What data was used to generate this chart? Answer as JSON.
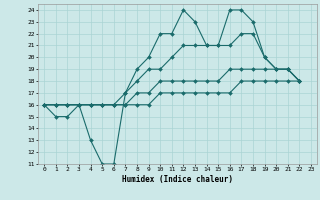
{
  "xlabel": "Humidex (Indice chaleur)",
  "xlim": [
    -0.5,
    23.5
  ],
  "ylim": [
    11,
    24.5
  ],
  "background_color": "#cce8e8",
  "grid_color": "#aad4d4",
  "line_color": "#1a6b6b",
  "series": [
    [
      16,
      15,
      15,
      16,
      13,
      11,
      11,
      17,
      19,
      20,
      22,
      22,
      24,
      23,
      21,
      21,
      24,
      24,
      23,
      20,
      19,
      19,
      18
    ],
    [
      16,
      16,
      16,
      16,
      16,
      16,
      16,
      17,
      18,
      19,
      19,
      20,
      21,
      21,
      21,
      21,
      21,
      22,
      22,
      20,
      19,
      19,
      18
    ],
    [
      16,
      16,
      16,
      16,
      16,
      16,
      16,
      16,
      17,
      17,
      18,
      18,
      18,
      18,
      18,
      18,
      19,
      19,
      19,
      19,
      19,
      19,
      18
    ],
    [
      16,
      16,
      16,
      16,
      16,
      16,
      16,
      16,
      16,
      16,
      17,
      17,
      17,
      17,
      17,
      17,
      17,
      18,
      18,
      18,
      18,
      18,
      18
    ]
  ],
  "xtick_labels": [
    "0",
    "1",
    "2",
    "3",
    "4",
    "5",
    "6",
    "7",
    "8",
    "9",
    "10",
    "11",
    "12",
    "13",
    "14",
    "15",
    "16",
    "17",
    "18",
    "19",
    "20",
    "21",
    "22",
    "23"
  ],
  "ytick_labels": [
    "11",
    "12",
    "13",
    "14",
    "15",
    "16",
    "17",
    "18",
    "19",
    "20",
    "21",
    "22",
    "23",
    "24"
  ]
}
